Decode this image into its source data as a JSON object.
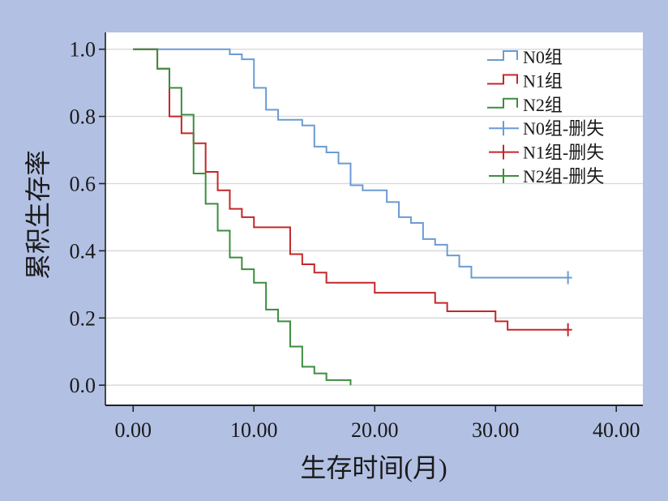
{
  "figure": {
    "background": "#b2c0e3",
    "plot_background": "#ffffff",
    "grid_color": "#d9d9d9",
    "axis_color": "#222222",
    "text_color": "#1a1a1a"
  },
  "chart_data": {
    "type": "line",
    "xlabel": "生存时间(月)",
    "ylabel": "累积生存率",
    "xlim": [
      -2.3,
      42.2
    ],
    "ylim": [
      -0.06,
      1.05
    ],
    "xticks": [
      "0.00",
      "10.00",
      "20.00",
      "30.00",
      "40.00"
    ],
    "yticks": [
      "0.0",
      "0.2",
      "0.4",
      "0.6",
      "0.8",
      "1.0"
    ],
    "grid": true,
    "legend_position": "top-right",
    "series": [
      {
        "name": "N0组",
        "color": "#6b9bd2",
        "step": true,
        "x": [
          0,
          8,
          9,
          10,
          11,
          12,
          14,
          15,
          16,
          17,
          18,
          19,
          21,
          22,
          23,
          24,
          25,
          26,
          27,
          28,
          36
        ],
        "y": [
          1.0,
          0.985,
          0.97,
          0.885,
          0.82,
          0.79,
          0.773,
          0.71,
          0.693,
          0.66,
          0.595,
          0.58,
          0.545,
          0.5,
          0.483,
          0.435,
          0.418,
          0.386,
          0.353,
          0.32,
          0.32
        ]
      },
      {
        "name": "N1组",
        "color": "#c3272b",
        "step": true,
        "x": [
          0,
          2,
          3,
          4,
          5,
          6,
          7,
          8,
          9,
          10,
          13,
          14,
          15,
          16,
          20,
          25,
          26,
          30,
          31,
          36
        ],
        "y": [
          1.0,
          0.942,
          0.8,
          0.75,
          0.72,
          0.635,
          0.58,
          0.525,
          0.5,
          0.47,
          0.39,
          0.36,
          0.335,
          0.305,
          0.275,
          0.245,
          0.22,
          0.19,
          0.165,
          0.165
        ]
      },
      {
        "name": "N2组",
        "color": "#3b8d3e",
        "step": true,
        "x": [
          0,
          2,
          3,
          4,
          5,
          6,
          7,
          8,
          9,
          10,
          11,
          12,
          13,
          14,
          15,
          16,
          18
        ],
        "y": [
          1.0,
          0.942,
          0.885,
          0.805,
          0.63,
          0.54,
          0.46,
          0.38,
          0.345,
          0.305,
          0.225,
          0.19,
          0.115,
          0.055,
          0.035,
          0.015,
          0.0
        ]
      },
      {
        "name": "N0组-删失",
        "color": "#6b9bd2",
        "censored": true,
        "x": [
          36
        ],
        "y": [
          0.32
        ]
      },
      {
        "name": "N1组-删失",
        "color": "#c3272b",
        "censored": true,
        "x": [
          36
        ],
        "y": [
          0.165
        ]
      },
      {
        "name": "N2组-删失",
        "color": "#3b8d3e",
        "censored": true,
        "x": [],
        "y": []
      }
    ]
  }
}
